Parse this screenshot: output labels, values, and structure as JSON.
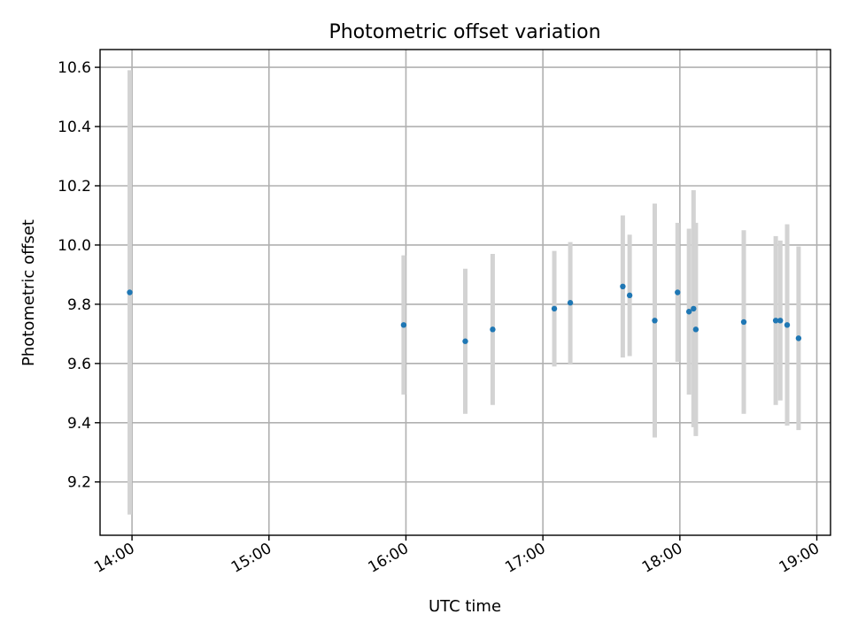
{
  "chart_data": {
    "type": "scatter",
    "title": "Photometric offset variation",
    "xlabel": "UTC time",
    "ylabel": "Photometric offset",
    "xlim": [
      "13:46",
      "19:06"
    ],
    "ylim": [
      9.02,
      10.66
    ],
    "x_ticks": [
      "14:00",
      "15:00",
      "16:00",
      "17:00",
      "18:00",
      "19:00"
    ],
    "y_ticks": [
      9.2,
      9.4,
      9.6,
      9.8,
      10.0,
      10.2,
      10.4,
      10.6
    ],
    "y_tick_labels": [
      "9.2",
      "9.4",
      "9.6",
      "9.8",
      "10.0",
      "10.2",
      "10.4",
      "10.6"
    ],
    "grid": true,
    "legend": "none",
    "colors": {
      "marker": "#1f77b4",
      "error_bar": "#d3d3d3",
      "grid": "#b0b0b0"
    },
    "series": [
      {
        "points": [
          {
            "x": "13:59",
            "y": 9.84,
            "err": 0.75
          },
          {
            "x": "15:59",
            "y": 9.73,
            "err": 0.235
          },
          {
            "x": "16:26",
            "y": 9.675,
            "err": 0.245
          },
          {
            "x": "16:38",
            "y": 9.715,
            "err": 0.255
          },
          {
            "x": "17:05",
            "y": 9.785,
            "err": 0.195
          },
          {
            "x": "17:12",
            "y": 9.805,
            "err": 0.205
          },
          {
            "x": "17:35",
            "y": 9.86,
            "err": 0.24
          },
          {
            "x": "17:38",
            "y": 9.83,
            "err": 0.205
          },
          {
            "x": "17:49",
            "y": 9.745,
            "err": 0.395
          },
          {
            "x": "17:59",
            "y": 9.84,
            "err": 0.235
          },
          {
            "x": "18:04",
            "y": 9.775,
            "err": 0.28
          },
          {
            "x": "18:06",
            "y": 9.785,
            "err": 0.4
          },
          {
            "x": "18:07",
            "y": 9.715,
            "err": 0.36
          },
          {
            "x": "18:28",
            "y": 9.74,
            "err": 0.31
          },
          {
            "x": "18:42",
            "y": 9.745,
            "err": 0.285
          },
          {
            "x": "18:44",
            "y": 9.745,
            "err": 0.27
          },
          {
            "x": "18:47",
            "y": 9.73,
            "err": 0.34
          },
          {
            "x": "18:52",
            "y": 9.685,
            "err": 0.31
          }
        ]
      }
    ]
  }
}
